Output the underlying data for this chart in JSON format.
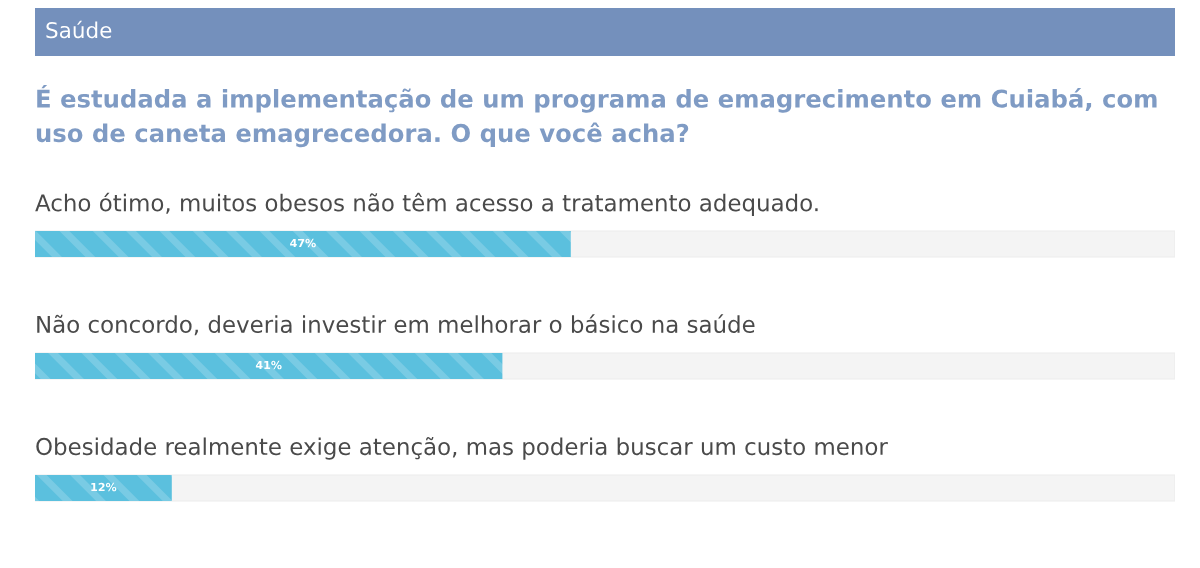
{
  "chart_data": {
    "type": "bar",
    "orientation": "horizontal",
    "title": "É estudada a implementação de um programa de emagrecimento em Cuiabá, com uso de caneta emagrecedora. O que você acha?",
    "annotations": [
      "Saúde"
    ],
    "categories": [
      "Acho ótimo, muitos obesos não têm acesso a tratamento adequado.",
      "Não concordo, deveria investir em melhorar o básico na saúde",
      "Obesidade realmente exige atenção, mas poderia buscar um custo menor"
    ],
    "values": [
      47,
      41,
      12
    ],
    "value_labels": [
      "47%",
      "41%",
      "12%"
    ],
    "color": "#5bc0de",
    "xlim": [
      0,
      100
    ],
    "tick_labels": "y"
  }
}
